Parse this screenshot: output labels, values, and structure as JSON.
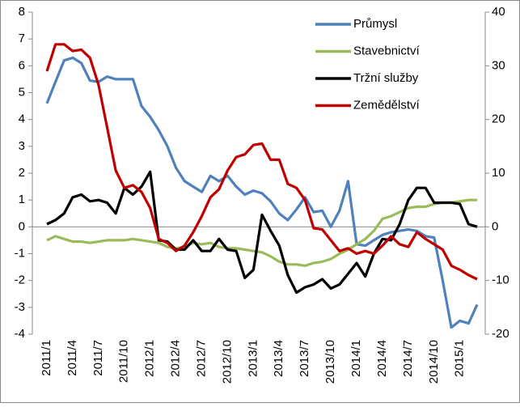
{
  "chart_data": {
    "type": "line",
    "categories": [
      "2011/1",
      null,
      null,
      "2011/4",
      null,
      null,
      "2011/7",
      null,
      null,
      "2011/10",
      null,
      null,
      "2012/1",
      null,
      null,
      "2012/4",
      null,
      null,
      "2012/7",
      null,
      null,
      "2012/10",
      null,
      null,
      "2013/1",
      null,
      null,
      "2013/4",
      null,
      null,
      "2013/7",
      null,
      null,
      "2013/10",
      null,
      null,
      "2014/1",
      null,
      null,
      "2014/4",
      null,
      null,
      "2014/7",
      null,
      null,
      "2014/10",
      null,
      null,
      "2015/1",
      null,
      null
    ],
    "series": [
      {
        "name": "Průmysl",
        "color": "#4f81bd",
        "values": [
          4.6,
          5.4,
          6.2,
          6.3,
          6.1,
          5.45,
          5.4,
          5.6,
          5.5,
          5.5,
          5.5,
          4.5,
          4.1,
          3.6,
          3.0,
          2.2,
          1.7,
          1.5,
          1.3,
          1.9,
          1.7,
          1.9,
          1.5,
          1.2,
          1.35,
          1.25,
          0.95,
          0.5,
          0.25,
          0.65,
          1.1,
          0.55,
          0.6,
          0.0,
          0.6,
          1.7,
          -0.65,
          -0.7,
          -0.5,
          -0.3,
          -0.2,
          -0.15,
          -0.1,
          -0.15,
          -0.35,
          -0.4,
          -2.0,
          -3.75,
          -3.5,
          -3.6,
          -2.9
        ]
      },
      {
        "name": "Stavebnictví",
        "color": "#9bbb59",
        "values": [
          -0.5,
          -0.35,
          -0.45,
          -0.55,
          -0.55,
          -0.6,
          -0.55,
          -0.5,
          -0.5,
          -0.5,
          -0.45,
          -0.5,
          -0.55,
          -0.6,
          -0.75,
          -0.8,
          -0.75,
          -0.6,
          -0.65,
          -0.6,
          -0.75,
          -0.8,
          -0.8,
          -0.85,
          -0.9,
          -0.95,
          -1.1,
          -1.3,
          -1.4,
          -1.4,
          -1.45,
          -1.35,
          -1.3,
          -1.2,
          -1.0,
          -0.85,
          -0.65,
          -0.45,
          -0.15,
          0.3,
          0.4,
          0.55,
          0.7,
          0.75,
          0.75,
          0.85,
          0.9,
          0.9,
          0.95,
          1.0,
          1.0
        ]
      },
      {
        "name": "Tržní služby",
        "color": "#000000",
        "values": [
          0.1,
          0.25,
          0.5,
          1.1,
          1.2,
          0.95,
          1.0,
          0.9,
          0.5,
          1.45,
          1.2,
          1.5,
          2.05,
          -0.5,
          -0.55,
          -0.85,
          -0.85,
          -0.5,
          -0.9,
          -0.9,
          -0.45,
          -0.85,
          -0.9,
          -1.9,
          -1.6,
          0.45,
          -0.15,
          -0.7,
          -1.8,
          -2.45,
          -2.25,
          -2.15,
          -1.95,
          -2.3,
          -2.15,
          -1.75,
          -1.35,
          -1.85,
          -1.0,
          -0.45,
          -0.5,
          0.1,
          1.0,
          1.45,
          1.45,
          0.9,
          0.9,
          0.9,
          0.85,
          0.1,
          0.0
        ]
      },
      {
        "name": "Zemědělství",
        "color": "#c00000",
        "axis": "y2",
        "values": [
          29,
          34,
          34,
          32.75,
          33,
          31.5,
          26.5,
          18.5,
          10.5,
          7.25,
          7.75,
          6.5,
          3.5,
          -2.25,
          -3,
          -4.5,
          -3.5,
          -1,
          2,
          5.5,
          7,
          10.5,
          13,
          13.5,
          15.25,
          15.5,
          12.5,
          12.5,
          8,
          7.25,
          5,
          -0.25,
          -0.5,
          -2.5,
          -4.5,
          -4,
          -5,
          -4.5,
          -5,
          -3.5,
          -1.75,
          -3.25,
          -3.75,
          -1,
          -2.25,
          -3.25,
          -4.25,
          -7.25,
          -8,
          -9,
          -9.75
        ]
      }
    ],
    "ylim": [
      -4,
      8
    ],
    "yticks": [
      -4,
      -3,
      -2,
      -1,
      0,
      1,
      2,
      3,
      4,
      5,
      6,
      7,
      8
    ],
    "y2lim": [
      -20,
      40
    ],
    "y2ticks": [
      -20,
      -10,
      0,
      10,
      20,
      30,
      40
    ],
    "legend": "top-right"
  }
}
